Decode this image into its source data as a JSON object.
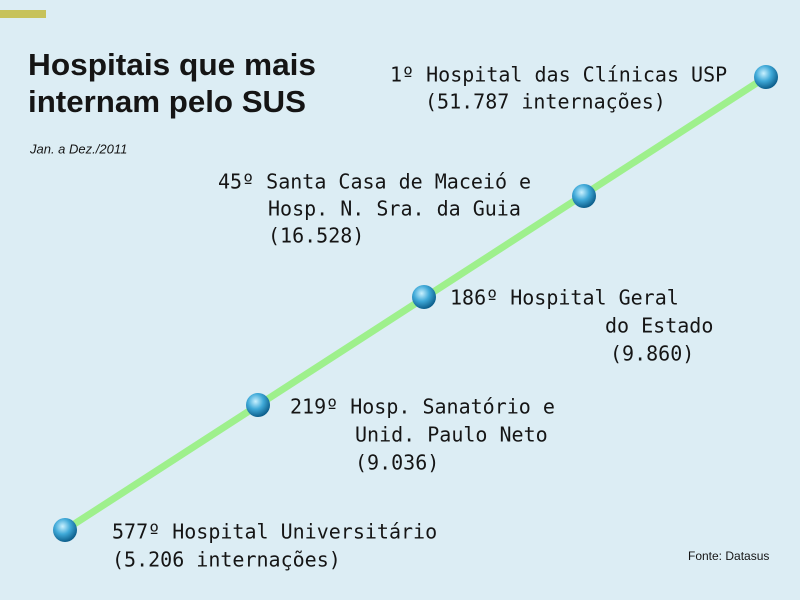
{
  "header": {
    "title": [
      "Hospitais que mais",
      "internam pelo SUS"
    ],
    "subtitle": "Jan. a Dez./2011"
  },
  "items": [
    {
      "lines": [
        "1º Hospital das Clínicas USP",
        "(51.787 internações)"
      ]
    },
    {
      "lines": [
        "45º Santa Casa de Maceió e",
        "Hosp. N. Sra. da Guia",
        "(16.528)"
      ]
    },
    {
      "lines": [
        "186º Hospital Geral",
        "do Estado",
        "(9.860)"
      ]
    },
    {
      "lines": [
        "219º Hosp. Sanatório e",
        "Unid. Paulo Neto",
        "(9.036)"
      ]
    },
    {
      "lines": [
        "577º Hospital Universitário",
        "(5.206 internações)"
      ]
    }
  ],
  "source": "Fonte: Datasus"
}
